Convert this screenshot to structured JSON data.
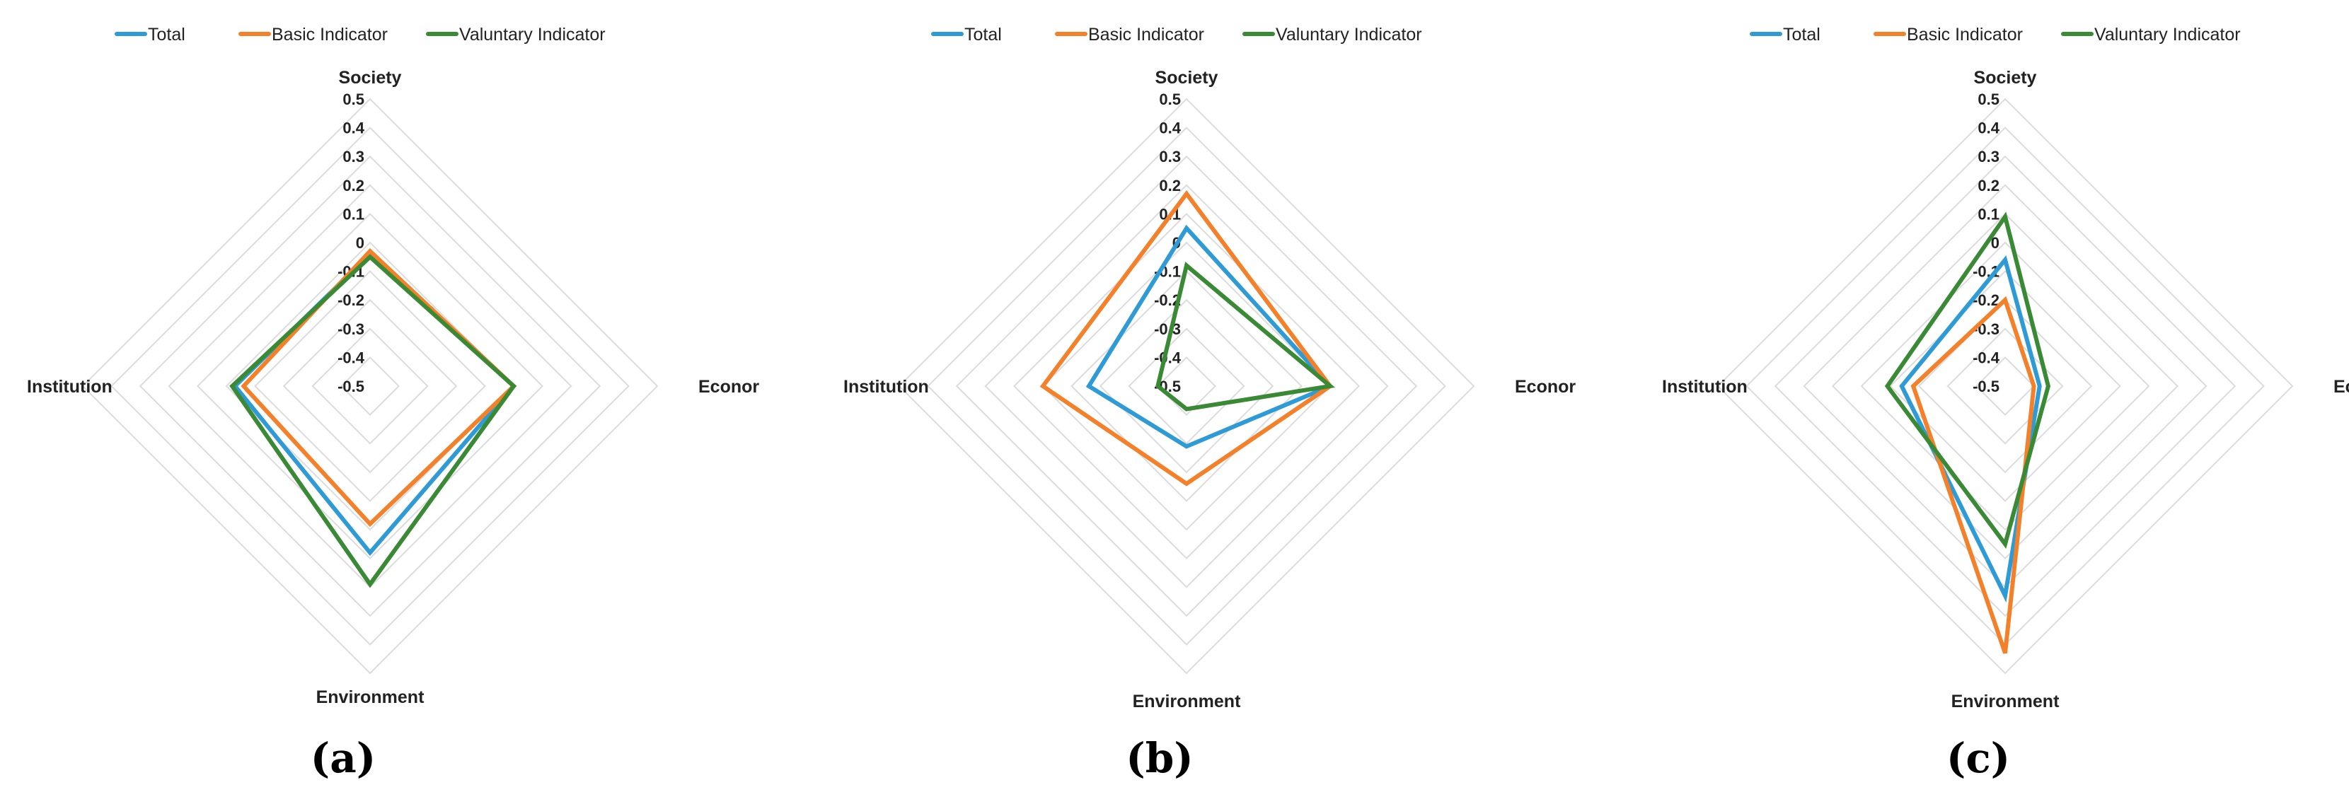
{
  "legend": [
    {
      "name": "Total",
      "color": "#2E9BD6"
    },
    {
      "name": "Basic Indicator",
      "color": "#F4812A"
    },
    {
      "name": "Valuntary Indicator",
      "color": "#3A8A35"
    }
  ],
  "chart_data": [
    {
      "type": "radar",
      "panel_label": "(a)",
      "axes": [
        "Society",
        "Econor",
        "Environment",
        "Institution"
      ],
      "ticks": [
        "0.5",
        "0.4",
        "0.3",
        "0.2",
        "0.1",
        "0",
        "-0.1",
        "-0.2",
        "-0.3",
        "-0.4",
        "-0.5"
      ],
      "range": [
        -0.5,
        0.5
      ],
      "series": [
        {
          "name": "Total",
          "values": [
            -0.04,
            0.0,
            0.08,
            -0.03
          ]
        },
        {
          "name": "Basic Indicator",
          "values": [
            -0.03,
            0.0,
            -0.02,
            -0.06
          ]
        },
        {
          "name": "Valuntary Indicator",
          "values": [
            -0.05,
            0.0,
            0.19,
            -0.02
          ]
        }
      ]
    },
    {
      "type": "radar",
      "panel_label": "(b)",
      "axes": [
        "Society",
        "Econor",
        "Environment",
        "Institution"
      ],
      "ticks": [
        "0.5",
        "0.4",
        "0.3",
        "0.2",
        "0.1",
        "0",
        "-0.1",
        "-0.2",
        "-0.3",
        "-0.4",
        "-0.5"
      ],
      "range": [
        -0.5,
        0.5
      ],
      "series": [
        {
          "name": "Total",
          "values": [
            0.05,
            0.0,
            -0.29,
            -0.16
          ]
        },
        {
          "name": "Basic Indicator",
          "values": [
            0.17,
            0.0,
            -0.16,
            0.0
          ]
        },
        {
          "name": "Valuntary Indicator",
          "values": [
            -0.08,
            0.0,
            -0.42,
            -0.4
          ]
        }
      ]
    },
    {
      "type": "radar",
      "panel_label": "(c)",
      "axes": [
        "Society",
        "Econor",
        "Environment",
        "Institution"
      ],
      "ticks": [
        "0.5",
        "0.4",
        "0.3",
        "0.2",
        "0.1",
        "0",
        "-0.1",
        "-0.2",
        "-0.3",
        "-0.4",
        "-0.5"
      ],
      "range": [
        -0.5,
        0.5
      ],
      "series": [
        {
          "name": "Total",
          "values": [
            -0.06,
            -0.38,
            0.23,
            -0.14
          ]
        },
        {
          "name": "Basic Indicator",
          "values": [
            -0.2,
            -0.4,
            0.43,
            -0.18
          ]
        },
        {
          "name": "Valuntary Indicator",
          "values": [
            0.09,
            -0.35,
            0.05,
            -0.09
          ]
        }
      ]
    }
  ]
}
